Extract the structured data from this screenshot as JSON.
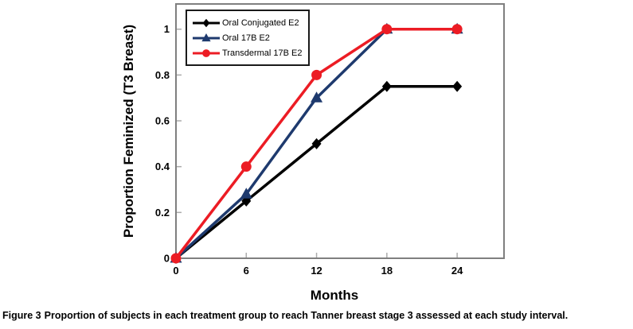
{
  "chart_data": {
    "type": "line",
    "x": [
      0,
      6,
      12,
      18,
      24
    ],
    "series": [
      {
        "name": "Oral Conjugated E2",
        "color": "#000000",
        "marker": "diamond",
        "values": [
          0,
          0.25,
          0.5,
          0.75,
          0.75
        ]
      },
      {
        "name": "Oral 17B E2",
        "color": "#1E3A6E",
        "marker": "triangle",
        "values": [
          0,
          0.28,
          0.7,
          1,
          1
        ]
      },
      {
        "name": "Transdermal 17B E2",
        "color": "#EC1C24",
        "marker": "circle",
        "values": [
          0,
          0.4,
          0.8,
          1,
          1
        ]
      }
    ],
    "title": "",
    "xlabel": "Months",
    "ylabel": "Proportion Feminized (T3 Breast)",
    "xticks": [
      0,
      6,
      12,
      18,
      24
    ],
    "xtick_labels": [
      "0",
      "6",
      "12",
      "18",
      "24"
    ],
    "yticks": [
      0,
      0.2,
      0.4,
      0.6,
      0.8,
      1
    ],
    "ytick_labels": [
      "0",
      "0.2",
      "0.4",
      "0.6",
      "0.8",
      "1"
    ],
    "xlim": [
      0,
      28
    ],
    "ylim": [
      0,
      1.11
    ],
    "grid": false,
    "legend_position": "top-left",
    "axis_color": "#7f7f7f",
    "tick_color": "#ababab"
  },
  "caption": {
    "label": "Figure 3",
    "text": "Proportion of subjects in each treatment group to reach Tanner breast stage 3 assessed at each study interval."
  }
}
